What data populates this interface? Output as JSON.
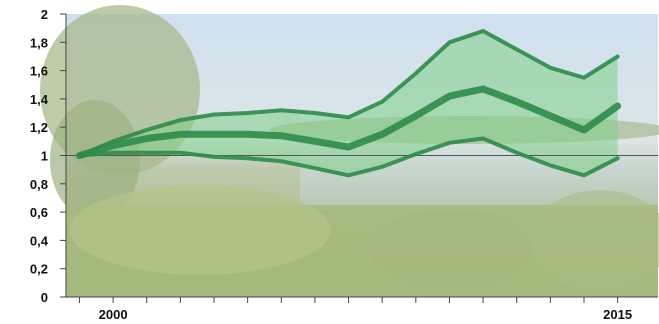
{
  "chart_data": {
    "type": "area",
    "title": "",
    "xlabel": "",
    "ylabel": "",
    "xlim": [
      1998.6,
      2016.2
    ],
    "ylim": [
      0,
      2
    ],
    "y_ticks": [
      {
        "value": 0,
        "label": "0"
      },
      {
        "value": 0.2,
        "label": "0,2"
      },
      {
        "value": 0.4,
        "label": "0,4"
      },
      {
        "value": 0.6,
        "label": "0,6"
      },
      {
        "value": 0.8,
        "label": "0,8"
      },
      {
        "value": 1,
        "label": "1"
      },
      {
        "value": 1.2,
        "label": "1,2"
      },
      {
        "value": 1.4,
        "label": "1,4"
      },
      {
        "value": 1.6,
        "label": "1,6"
      },
      {
        "value": 1.8,
        "label": "1,8"
      },
      {
        "value": 2,
        "label": "2"
      }
    ],
    "x_ticks": [
      1999,
      2000,
      2001,
      2002,
      2003,
      2004,
      2005,
      2006,
      2007,
      2008,
      2009,
      2010,
      2011,
      2012,
      2013,
      2014,
      2015
    ],
    "x_tick_labels": [
      {
        "value": 2000,
        "label": "2000"
      },
      {
        "value": 2015,
        "label": "2015"
      }
    ],
    "reference_line": 1,
    "x": [
      1999,
      2000,
      2001,
      2002,
      2003,
      2004,
      2005,
      2006,
      2007,
      2008,
      2009,
      2010,
      2011,
      2012,
      2013,
      2014,
      2015
    ],
    "series": [
      {
        "values": [
          1.0,
          1.1,
          1.18,
          1.25,
          1.29,
          1.3,
          1.32,
          1.3,
          1.27,
          1.38,
          1.58,
          1.8,
          1.88,
          1.75,
          1.62,
          1.55,
          1.7
        ]
      },
      {
        "values": [
          1.0,
          1.07,
          1.12,
          1.15,
          1.15,
          1.15,
          1.14,
          1.1,
          1.06,
          1.15,
          1.28,
          1.42,
          1.47,
          1.38,
          1.28,
          1.18,
          1.35
        ]
      },
      {
        "values": [
          1.0,
          1.02,
          1.02,
          1.02,
          0.99,
          0.98,
          0.96,
          0.91,
          0.86,
          0.92,
          1.01,
          1.09,
          1.12,
          1.02,
          0.93,
          0.86,
          0.98
        ]
      }
    ],
    "band": {
      "upper_series": 0,
      "lower_series": 2
    },
    "grid": false,
    "colors": {
      "line": "#2e8b4a",
      "band_fill": "#7fd08a",
      "reference": "#555555",
      "axis": "#444444",
      "background_sky": "#c9dced",
      "background_reeds": "#a9bf82"
    }
  }
}
